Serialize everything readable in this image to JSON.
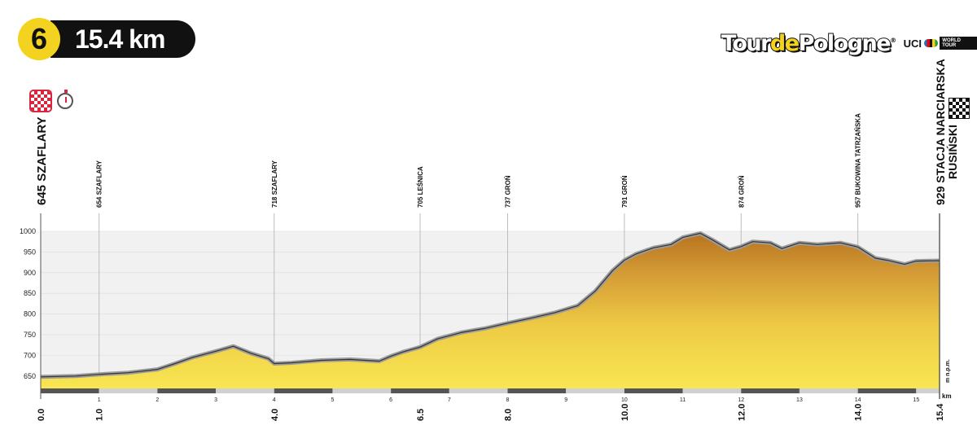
{
  "header": {
    "stage_number": "6",
    "distance": "15.4 km"
  },
  "brand": {
    "logo_part1": "Tour",
    "logo_part2": "de",
    "logo_part3": "Pologne",
    "logo_registered": "®",
    "uci_label": "UCI",
    "uci_tour_label": "WORLD TOUR"
  },
  "icons": {
    "start_icon": "checkered-sprint-icon",
    "time_trial_icon": "stopwatch-icon",
    "finish_icon": "checkered-flag-icon",
    "colors": {
      "fill_top": "#c98b2a",
      "fill_bottom": "#f7e14a",
      "outline": "#9a9a9a",
      "badge": "#f3d31f"
    }
  },
  "chart_data": {
    "type": "area",
    "xlabel": "km",
    "ylabel": "m n.p.m.",
    "xlim": [
      0,
      15.4
    ],
    "ylim": [
      620,
      1000
    ],
    "y_ticks": [
      650,
      700,
      750,
      800,
      850,
      900,
      950,
      1000
    ],
    "x_ticks_minor": [
      1,
      2,
      3,
      4,
      5,
      6,
      7,
      8,
      9,
      10,
      11,
      12,
      13,
      14,
      15
    ],
    "x_ticks_major": [
      "0.0",
      "1.0",
      "4.0",
      "6.5",
      "8.0",
      "10.0",
      "12.0",
      "14.0",
      "15.4"
    ],
    "x_ticks_major_values": [
      0,
      1.0,
      4.0,
      6.5,
      8.0,
      10.0,
      12.0,
      14.0,
      15.4
    ],
    "start_label": "645 SZAFLARY",
    "finish_label_line1": "929 STACJA NARCIARSKA",
    "finish_label_line2": "RUSIŃSKI",
    "waypoints": [
      {
        "km": 1.0,
        "label": "654 SZAFLARY"
      },
      {
        "km": 4.0,
        "label": "718 SZAFLARY"
      },
      {
        "km": 6.5,
        "label": "705 LEŚNICA"
      },
      {
        "km": 8.0,
        "label": "737 GROŃ"
      },
      {
        "km": 10.0,
        "label": "791 GROŃ"
      },
      {
        "km": 12.0,
        "label": "874 GROŃ"
      },
      {
        "km": 14.0,
        "label": "957 BUKOWINA TATRZAŃSKA"
      }
    ],
    "x": [
      0,
      0.3,
      0.6,
      1.0,
      1.5,
      2.0,
      2.3,
      2.6,
      3.0,
      3.3,
      3.6,
      3.9,
      4.0,
      4.3,
      4.8,
      5.3,
      5.8,
      6.0,
      6.2,
      6.5,
      6.8,
      7.2,
      7.6,
      8.0,
      8.4,
      8.8,
      9.2,
      9.5,
      9.8,
      10.0,
      10.2,
      10.5,
      10.8,
      11.0,
      11.3,
      11.5,
      11.8,
      12.0,
      12.2,
      12.5,
      12.7,
      13.0,
      13.3,
      13.7,
      14.0,
      14.3,
      14.5,
      14.8,
      15.0,
      15.4
    ],
    "elevation": [
      648,
      649,
      650,
      654,
      658,
      666,
      680,
      695,
      710,
      722,
      705,
      692,
      680,
      682,
      688,
      690,
      686,
      698,
      708,
      720,
      740,
      755,
      765,
      778,
      790,
      803,
      820,
      855,
      905,
      930,
      945,
      960,
      968,
      985,
      995,
      980,
      955,
      963,
      975,
      972,
      958,
      972,
      968,
      972,
      962,
      935,
      930,
      920,
      928,
      929
    ]
  }
}
